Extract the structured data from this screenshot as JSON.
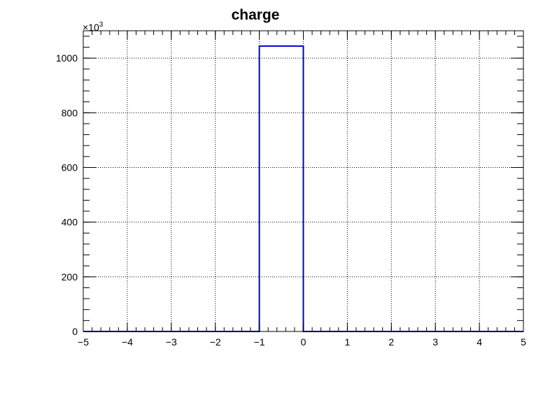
{
  "chart_data": {
    "type": "bar",
    "title": "charge",
    "xlim": [
      -5,
      5
    ],
    "ylim": [
      0,
      1100000
    ],
    "x_ticks": [
      "-5",
      "-4",
      "-3",
      "-2",
      "-1",
      "0",
      "1",
      "2",
      "3",
      "4",
      "5"
    ],
    "y_ticks": [
      "0",
      "200",
      "400",
      "600",
      "800",
      "1000"
    ],
    "y_multiplier": "×10",
    "y_multiplier_exp": "3",
    "grid": true,
    "bins": {
      "edges": [
        -5,
        -4,
        -3,
        -2,
        -1,
        0,
        1,
        2,
        3,
        4,
        5
      ],
      "values": [
        0,
        0,
        0,
        0,
        1044000,
        0,
        0,
        0,
        0,
        0
      ]
    },
    "line_color": "#0000cc"
  }
}
